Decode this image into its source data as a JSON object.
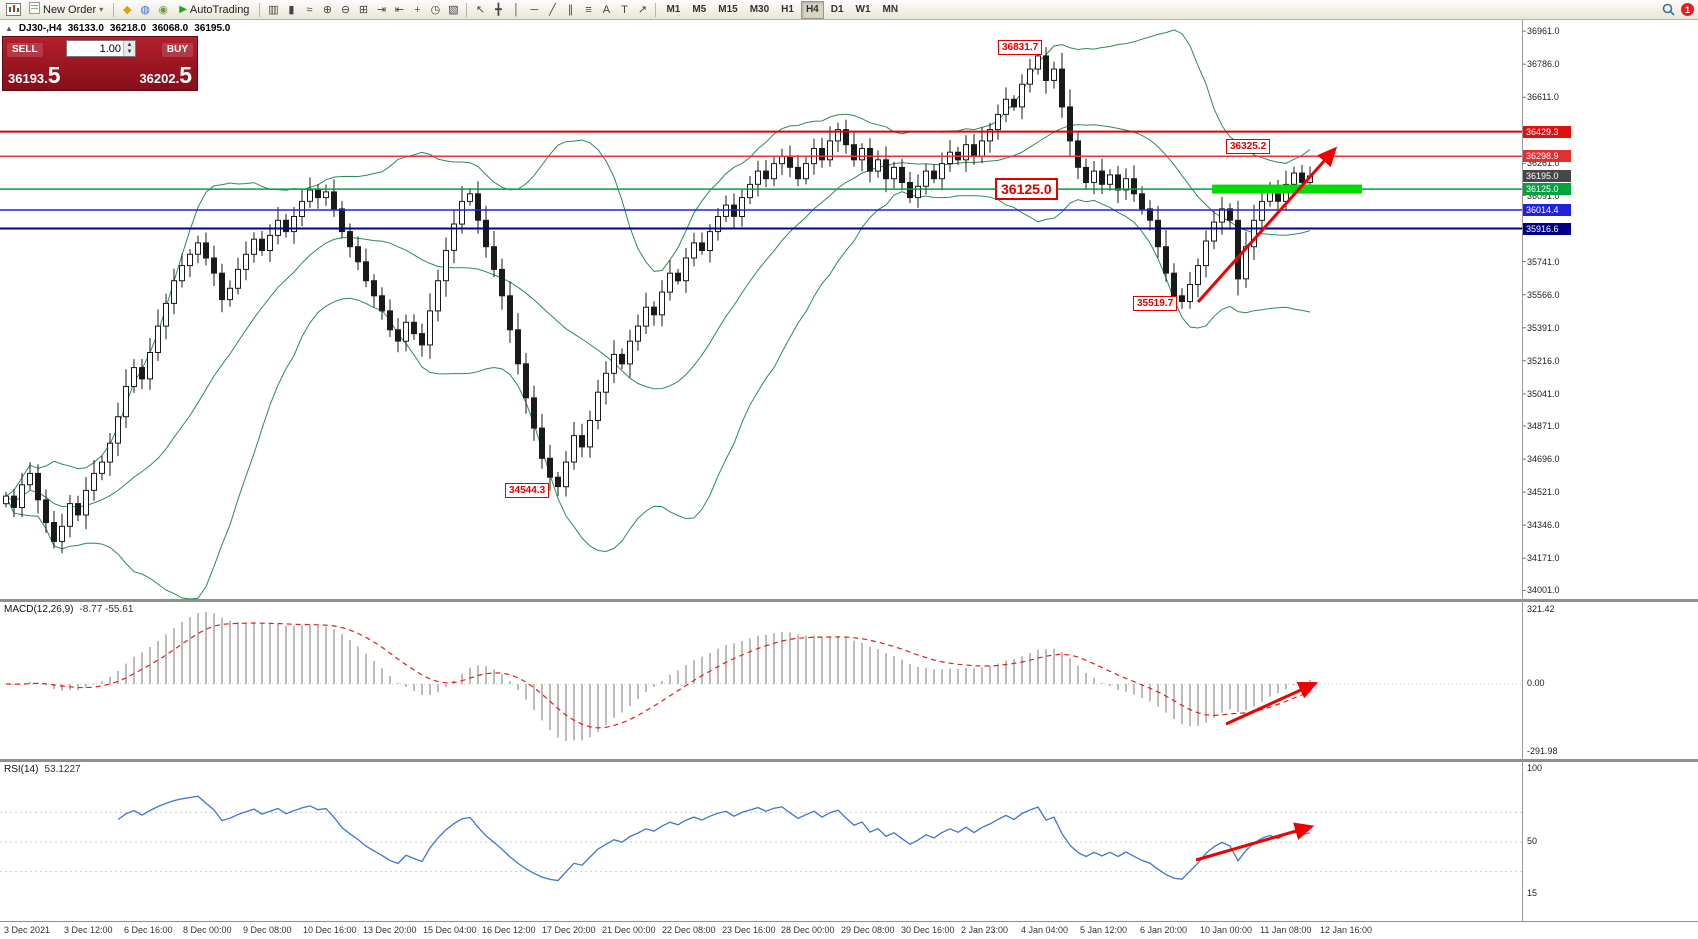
{
  "toolbar": {
    "buttons": {
      "new_order": "New Order",
      "autotrading": "AutoTrading",
      "new_order_arrow": "▾"
    },
    "app_icons": [
      {
        "name": "metaeditor-icon",
        "glyph": "◆",
        "color": "#d9a400"
      },
      {
        "name": "market-watch-icon",
        "glyph": "◍",
        "color": "#3b6fd4"
      },
      {
        "name": "alerts-icon",
        "glyph": "◉",
        "color": "#6f9e3f"
      }
    ],
    "chart_icons": [
      {
        "name": "bar-chart-icon",
        "glyph": "▥",
        "color": "#444"
      },
      {
        "name": "candlestick-chart-icon",
        "glyph": "▮",
        "color": "#444"
      },
      {
        "name": "line-chart-icon",
        "glyph": "≈",
        "color": "#444"
      },
      {
        "name": "zoom-in-icon",
        "glyph": "⊕",
        "color": "#444"
      },
      {
        "name": "zoom-out-icon",
        "glyph": "⊖",
        "color": "#444"
      },
      {
        "name": "tile-windows-icon",
        "glyph": "⊞",
        "color": "#444"
      },
      {
        "name": "auto-scroll-icon",
        "glyph": "⇥",
        "color": "#444"
      },
      {
        "name": "chart-shift-icon",
        "glyph": "⇤",
        "color": "#444"
      },
      {
        "name": "indicators-icon",
        "glyph": "+",
        "color": "#0a8a0a"
      },
      {
        "name": "periods-icon",
        "glyph": "◷",
        "color": "#444"
      },
      {
        "name": "templates-icon",
        "glyph": "▧",
        "color": "#444"
      }
    ],
    "draw_icons": [
      {
        "name": "cursor-icon",
        "glyph": "↖",
        "color": "#444"
      },
      {
        "name": "crosshair-icon",
        "glyph": "╋",
        "color": "#444"
      },
      {
        "name": "vertical-line-icon",
        "glyph": "│",
        "color": "#444"
      },
      {
        "name": "horizontal-line-icon",
        "glyph": "─",
        "color": "#444"
      },
      {
        "name": "trendline-icon",
        "glyph": "╱",
        "color": "#444"
      },
      {
        "name": "channel-icon",
        "glyph": "∥",
        "color": "#444"
      },
      {
        "name": "fibonacci-icon",
        "glyph": "≡",
        "color": "#444"
      },
      {
        "name": "text-icon",
        "glyph": "A",
        "color": "#444"
      },
      {
        "name": "label-icon",
        "glyph": "T",
        "color": "#444"
      },
      {
        "name": "arrow-tool-icon",
        "glyph": "↗",
        "color": "#444"
      }
    ],
    "timeframes": [
      {
        "label": "M1"
      },
      {
        "label": "M5"
      },
      {
        "label": "M15"
      },
      {
        "label": "M30"
      },
      {
        "label": "H1"
      },
      {
        "label": "H4",
        "active": true
      },
      {
        "label": "D1"
      },
      {
        "label": "W1"
      },
      {
        "label": "MN"
      }
    ],
    "right": {
      "search_badge": "1"
    }
  },
  "quote_bar": {
    "toggle_glyph": "▲",
    "symbol": "DJ30-,H4",
    "open": "36133.0",
    "high": "36218.0",
    "low": "36068.0",
    "close": "36195.0"
  },
  "trade_widget": {
    "sell_label": "SELL",
    "buy_label": "BUY",
    "volume": "1.00",
    "sell_price_main": "36193.",
    "sell_price_frac": "5",
    "buy_price_main": "36202.",
    "buy_price_frac": "5"
  },
  "price_axis": {
    "labels": [
      "36961.0",
      "36786.0",
      "36611.0",
      "36436.0",
      "36261.0",
      "36091.0",
      "35916.0",
      "35741.0",
      "35566.0",
      "35391.0",
      "35216.0",
      "35041.0",
      "34871.0",
      "34696.0",
      "34521.0",
      "34346.0",
      "34171.0",
      "34001.0"
    ]
  },
  "price_tags": [
    {
      "text": "36429.3",
      "price": 36429.3,
      "bg": "#dd1010"
    },
    {
      "text": "36298.9",
      "price": 36298.9,
      "bg": "#e03030"
    },
    {
      "text": "36195.0",
      "price": 36195.0,
      "bg": "#474747"
    },
    {
      "text": "36125.0",
      "price": 36125.0,
      "bg": "#00a33d"
    },
    {
      "text": "36014.4",
      "price": 36014.4,
      "bg": "#2222dd"
    },
    {
      "text": "35916.6",
      "price": 35916.6,
      "bg": "#000088"
    }
  ],
  "hlines": [
    {
      "price": 36429.3,
      "color": "#dd0000",
      "width": 2
    },
    {
      "price": 36298.9,
      "color": "#ee3333",
      "width": 1.5
    },
    {
      "price": 36125.0,
      "color": "#00a33d",
      "width": 1.5
    },
    {
      "price": 36014.4,
      "color": "#2222dd",
      "width": 1.5
    },
    {
      "price": 35916.6,
      "color": "#000088",
      "width": 2
    }
  ],
  "annotations": [
    {
      "id": "high",
      "text": "36831.7"
    },
    {
      "id": "res",
      "text": "36325.2"
    },
    {
      "id": "mid",
      "text": "36125.0",
      "big": true
    },
    {
      "id": "low",
      "text": "35519.7"
    },
    {
      "id": "bottom",
      "text": "34544.3"
    }
  ],
  "macd_panel": {
    "label": "MACD(12,26,9)",
    "values": "-8.77 -55.61",
    "axis": [
      "321.42",
      "0.00",
      "-291.98"
    ]
  },
  "rsi_panel": {
    "label": "RSI(14)",
    "value": "53.1227",
    "axis": [
      "100",
      "50",
      "15"
    ]
  },
  "time_axis": {
    "labels": [
      "3 Dec 2021",
      "3 Dec 12:00",
      "6 Dec 16:00",
      "8 Dec 00:00",
      "9 Dec 08:00",
      "10 Dec 16:00",
      "13 Dec 20:00",
      "15 Dec 04:00",
      "16 Dec 12:00",
      "17 Dec 20:00",
      "21 Dec 00:00",
      "22 Dec 08:00",
      "23 Dec 16:00",
      "28 Dec 00:00",
      "29 Dec 08:00",
      "30 Dec 16:00",
      "2 Jan 23:00",
      "4 Jan 04:00",
      "5 Jan 12:00",
      "6 Jan 20:00",
      "10 Jan 00:00",
      "11 Jan 08:00",
      "12 Jan 16:00"
    ]
  },
  "chart_data": {
    "type": "candlestick",
    "symbol": "DJ30-",
    "timeframe": "H4",
    "title": "DJ30-,H4",
    "ohlc_current": {
      "open": 36133.0,
      "high": 36218.0,
      "low": 36068.0,
      "close": 36195.0
    },
    "y_axis_range": [
      34001.0,
      36961.0
    ],
    "key_levels": [
      36429.3,
      36298.9,
      36125.0,
      36014.4,
      35916.6
    ],
    "marked_extremes": {
      "swing_high": 36831.7,
      "resistance": 36325.2,
      "pivot_zone": 36125.0,
      "swing_low": 35519.7,
      "major_low": 34544.3
    },
    "indicators": {
      "bollinger": {
        "period": 20,
        "deviation": 2
      },
      "macd": {
        "fast": 12,
        "slow": 26,
        "signal": 9,
        "current": [
          -8.77,
          -55.61
        ]
      },
      "rsi": {
        "period": 14,
        "current": 53.1227
      }
    },
    "closes": [
      34500,
      34440,
      34560,
      34620,
      34480,
      34360,
      34260,
      34340,
      34460,
      34400,
      34530,
      34620,
      34680,
      34780,
      34920,
      35080,
      35180,
      35120,
      35260,
      35400,
      35520,
      35640,
      35720,
      35780,
      35840,
      35760,
      35680,
      35540,
      35600,
      35700,
      35780,
      35860,
      35800,
      35880,
      35960,
      35900,
      35980,
      36060,
      36120,
      36080,
      36110,
      36020,
      35900,
      35820,
      35740,
      35640,
      35560,
      35480,
      35380,
      35320,
      35420,
      35360,
      35300,
      35480,
      35640,
      35800,
      35940,
      36060,
      36100,
      35960,
      35820,
      35700,
      35560,
      35380,
      35200,
      35020,
      34860,
      34700,
      34600,
      34550,
      34680,
      34820,
      34760,
      34900,
      35050,
      35150,
      35250,
      35200,
      35320,
      35400,
      35500,
      35460,
      35580,
      35680,
      35640,
      35760,
      35840,
      35800,
      35900,
      35980,
      36040,
      35980,
      36080,
      36150,
      36220,
      36180,
      36260,
      36300,
      36240,
      36180,
      36260,
      36340,
      36280,
      36380,
      36440,
      36360,
      36280,
      36340,
      36220,
      36280,
      36180,
      36240,
      36160,
      36080,
      36140,
      36220,
      36180,
      36260,
      36320,
      36280,
      36360,
      36300,
      36380,
      36440,
      36520,
      36600,
      36560,
      36680,
      36760,
      36830,
      36700,
      36760,
      36560,
      36380,
      36240,
      36160,
      36220,
      36150,
      36200,
      36120,
      36180,
      36100,
      36020,
      35960,
      35820,
      35680,
      35560,
      35530,
      35620,
      35720,
      35850,
      35950,
      36020,
      35960,
      35650,
      35820,
      35960,
      36060,
      36120,
      36060,
      36150,
      36210,
      36160,
      36195
    ]
  }
}
